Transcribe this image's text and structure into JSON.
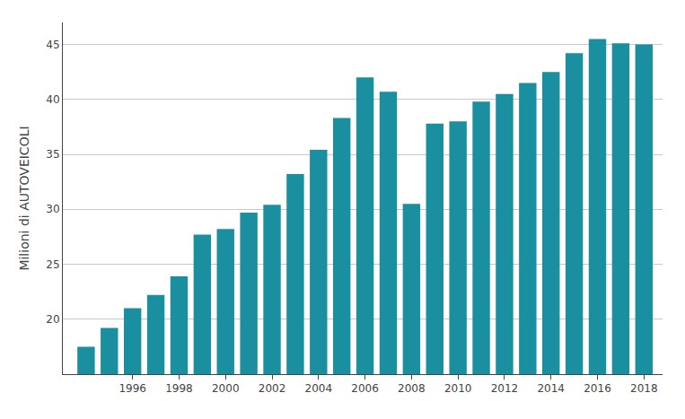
{
  "chart_data": {
    "type": "bar",
    "x": [
      1994,
      1995,
      1996,
      1997,
      1998,
      1999,
      2000,
      2001,
      2002,
      2003,
      2004,
      2005,
      2006,
      2007,
      2008,
      2009,
      2010,
      2011,
      2012,
      2013,
      2014,
      2015,
      2016,
      2017,
      2018
    ],
    "values": [
      17.5,
      19.2,
      21.0,
      22.2,
      23.9,
      27.7,
      28.2,
      29.7,
      30.4,
      33.2,
      35.4,
      38.3,
      42.0,
      40.7,
      30.5,
      37.8,
      38.0,
      39.8,
      40.5,
      41.5,
      42.5,
      44.2,
      45.5,
      45.1,
      45.0
    ],
    "color": "#1a8fa0",
    "ylabel": "Milioni di AUTOVEICOLI",
    "xlim": [
      1993,
      2018.8
    ],
    "xticks": [
      1996,
      1998,
      2000,
      2002,
      2004,
      2006,
      2008,
      2010,
      2012,
      2014,
      2016,
      2018
    ],
    "ylim": [
      15,
      47
    ],
    "yticks": [
      20,
      25,
      30,
      35,
      40,
      45
    ],
    "grid": "y"
  }
}
